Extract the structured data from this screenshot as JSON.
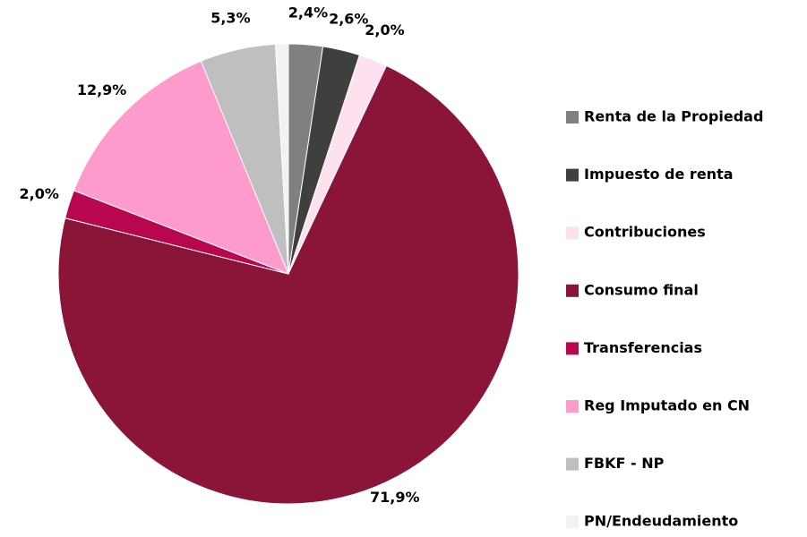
{
  "chart_data": {
    "type": "pie",
    "categories": [
      "Renta de la Propiedad",
      "Impuesto de renta",
      "Contribuciones",
      "Consumo final",
      "Transferencias",
      "Reg Imputado en CN",
      "FBKF - NP",
      "PN/Endeudamiento"
    ],
    "values": [
      2.4,
      2.6,
      2.0,
      71.9,
      2.0,
      12.9,
      5.3,
      0.9
    ],
    "value_labels": [
      "2,4%",
      "2,6%",
      "2,0%",
      "71,9%",
      "2,0%",
      "12,9%",
      "5,3%",
      null
    ],
    "colors": [
      "#808080",
      "#3f3f3f",
      "#fde1ef",
      "#8b1538",
      "#b8074f",
      "#ff9bcc",
      "#bfbfbf",
      "#f2f2f2"
    ],
    "legend": "right"
  }
}
